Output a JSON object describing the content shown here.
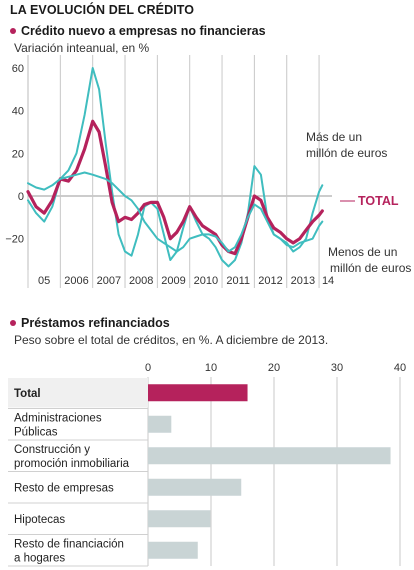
{
  "header": {
    "title": "LA EVOLUCIÓN DEL CRÉDITO"
  },
  "colors": {
    "total": "#b5225c",
    "segments": "#3fbdbf",
    "grid": "#c8c8c8",
    "bar": "#c9d4d5",
    "bar_total": "#b5225c"
  },
  "line_section": {
    "title": "Crédito nuevo a empresas no financieras",
    "subtitle": "Variación inteanual, en %",
    "annotations": {
      "large": [
        "Más de un",
        "millón de euros"
      ],
      "total": "TOTAL",
      "small": [
        "Menos de un",
        "millón de euros"
      ]
    }
  },
  "bar_section": {
    "title": "Préstamos refinanciados",
    "subtitle": "Peso sobre el total de créditos, en %. A diciembre de 2013."
  },
  "chart_data": [
    {
      "type": "line",
      "title": "Crédito nuevo a empresas no financieras",
      "subtitle": "Variación inteanual, en %",
      "ylim": [
        -30,
        62
      ],
      "yticks": [
        -20,
        0,
        20,
        40,
        60
      ],
      "xlim": [
        2005.0,
        2014.4
      ],
      "xtick_labels": [
        "05",
        "2006",
        "2007",
        "2008",
        "2009",
        "2010",
        "2011",
        "2012",
        "2013",
        "14"
      ],
      "grid": "vertical year separators",
      "series": [
        {
          "name": "Más de un millón de euros",
          "color": "#3fbdbf",
          "x": [
            2005.0,
            2005.25,
            2005.5,
            2005.75,
            2006.0,
            2006.25,
            2006.5,
            2006.75,
            2007.0,
            2007.2,
            2007.4,
            2007.6,
            2007.8,
            2008.0,
            2008.2,
            2008.4,
            2008.6,
            2008.8,
            2009.0,
            2009.2,
            2009.4,
            2009.6,
            2009.8,
            2010.0,
            2010.2,
            2010.4,
            2010.6,
            2010.8,
            2011.0,
            2011.2,
            2011.4,
            2011.6,
            2011.8,
            2012.0,
            2012.2,
            2012.4,
            2012.6,
            2012.8,
            2013.0,
            2013.2,
            2013.4,
            2013.6,
            2013.8,
            2014.0,
            2014.1
          ],
          "values": [
            -2,
            -8,
            -12,
            -5,
            8,
            12,
            20,
            38,
            60,
            50,
            25,
            2,
            -18,
            -26,
            -28,
            -18,
            -5,
            -3,
            -6,
            -18,
            -30,
            -26,
            -15,
            -5,
            -12,
            -18,
            -20,
            -24,
            -30,
            -33,
            -30,
            -22,
            -8,
            14,
            10,
            -10,
            -18,
            -20,
            -22,
            -26,
            -24,
            -20,
            -8,
            2,
            5
          ]
        },
        {
          "name": "TOTAL",
          "color": "#b5225c",
          "x": [
            2005.0,
            2005.25,
            2005.5,
            2005.75,
            2006.0,
            2006.25,
            2006.5,
            2006.75,
            2007.0,
            2007.2,
            2007.4,
            2007.6,
            2007.8,
            2008.0,
            2008.2,
            2008.4,
            2008.6,
            2008.8,
            2009.0,
            2009.2,
            2009.4,
            2009.6,
            2009.8,
            2010.0,
            2010.2,
            2010.4,
            2010.6,
            2010.8,
            2011.0,
            2011.2,
            2011.4,
            2011.6,
            2011.8,
            2012.0,
            2012.2,
            2012.4,
            2012.6,
            2012.8,
            2013.0,
            2013.2,
            2013.4,
            2013.6,
            2013.8,
            2014.0,
            2014.1
          ],
          "values": [
            2,
            -5,
            -8,
            -2,
            8,
            7,
            12,
            22,
            35,
            30,
            14,
            -3,
            -12,
            -10,
            -11,
            -8,
            -4,
            -3,
            -3,
            -10,
            -20,
            -17,
            -12,
            -5,
            -10,
            -14,
            -16,
            -18,
            -23,
            -26,
            -27,
            -20,
            -10,
            0,
            -2,
            -10,
            -15,
            -17,
            -20,
            -22,
            -20,
            -16,
            -12,
            -9,
            -7
          ]
        },
        {
          "name": "Menos de un millón de euros",
          "color": "#3fbdbf",
          "x": [
            2005.0,
            2005.25,
            2005.5,
            2005.75,
            2006.0,
            2006.25,
            2006.5,
            2006.75,
            2007.0,
            2007.2,
            2007.4,
            2007.6,
            2007.8,
            2008.0,
            2008.2,
            2008.4,
            2008.6,
            2008.8,
            2009.0,
            2009.2,
            2009.4,
            2009.6,
            2009.8,
            2010.0,
            2010.2,
            2010.4,
            2010.6,
            2010.8,
            2011.0,
            2011.2,
            2011.4,
            2011.6,
            2011.8,
            2012.0,
            2012.2,
            2012.4,
            2012.6,
            2012.8,
            2013.0,
            2013.2,
            2013.4,
            2013.6,
            2013.8,
            2014.0,
            2014.1
          ],
          "values": [
            6,
            4,
            3,
            5,
            8,
            9,
            10,
            11,
            10,
            9,
            8,
            6,
            3,
            0,
            -2,
            -6,
            -12,
            -16,
            -20,
            -22,
            -24,
            -26,
            -24,
            -20,
            -19,
            -18,
            -18,
            -19,
            -22,
            -26,
            -24,
            -18,
            -10,
            -4,
            -6,
            -12,
            -18,
            -20,
            -23,
            -24,
            -22,
            -21,
            -20,
            -14,
            -12
          ]
        }
      ]
    },
    {
      "type": "bar",
      "orientation": "horizontal",
      "title": "Préstamos refinanciados",
      "subtitle": "Peso sobre el total de créditos, en %. A diciembre de 2013.",
      "xlim": [
        0,
        40
      ],
      "xticks": [
        0,
        10,
        20,
        30,
        40
      ],
      "grid": "vertical at ticks",
      "categories": [
        [
          "Total"
        ],
        [
          "Administraciones",
          "Públicas"
        ],
        [
          "Construcción y",
          "promoción inmobiliaria"
        ],
        [
          "Resto de empresas"
        ],
        [
          "Hipotecas"
        ],
        [
          "Resto de financiación",
          "a hogares"
        ]
      ],
      "values": [
        15.8,
        3.7,
        38.5,
        14.8,
        9.9,
        7.9
      ]
    }
  ]
}
